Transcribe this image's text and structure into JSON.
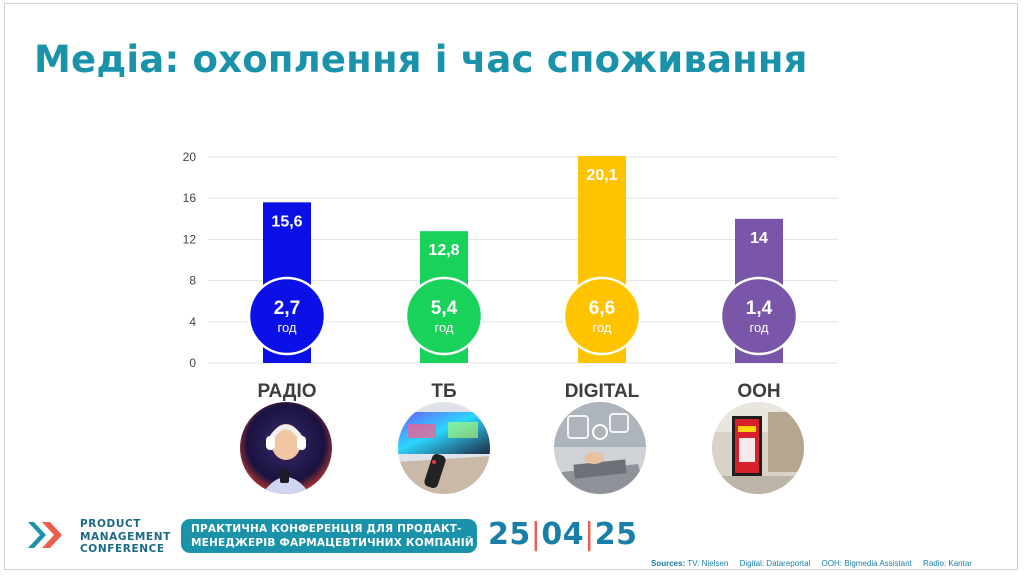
{
  "title": "Медіа: охоплення і час споживання",
  "chart_data": {
    "type": "bar",
    "categories": [
      "РАДІО",
      "ТБ",
      "DIGITAL",
      "OOH"
    ],
    "values": [
      15.6,
      12.8,
      20.1,
      14
    ],
    "value_labels": [
      "15,6",
      "12,8",
      "20,1",
      "14"
    ],
    "time_values": [
      2.7,
      5.4,
      6.6,
      1.4
    ],
    "time_labels": [
      "2,7",
      "5,4",
      "6,6",
      "1,4"
    ],
    "time_unit": "год",
    "y_ticks": [
      0,
      4,
      8,
      12,
      16,
      20
    ],
    "ylim": [
      0,
      20
    ],
    "grid": true,
    "colors": [
      "#0a10e6",
      "#19d25a",
      "#ffc300",
      "#7a56a8"
    ],
    "circle_text_colors": [
      "#ffffff",
      "#ffffff",
      "#ffffff",
      "#ffffff"
    ],
    "photo_icons": [
      "girl-headphones-photo-icon",
      "tv-remote-photo-icon",
      "laptop-digital-photo-icon",
      "billboard-ooh-photo-icon"
    ]
  },
  "footer": {
    "brand_lines": [
      "PRODUCT",
      "MANAGEMENT",
      "CONFERENCE"
    ],
    "conference_lines": [
      "ПРАКТИЧНА КОНФЕРЕНЦІЯ ДЛЯ ПРОДАКТ-",
      "МЕНЕДЖЕРІВ ФАРМАЦЕВТИЧНИХ КОМПАНІЙ"
    ],
    "date_parts": [
      "25",
      "04",
      "25"
    ],
    "date_separator": "|",
    "sources": {
      "label": "Sources:",
      "items": [
        "TV: Nielsen",
        "Digital: Datareportal",
        "OOH: Bigmedia Assistant",
        "Radio: Kantar"
      ]
    }
  }
}
